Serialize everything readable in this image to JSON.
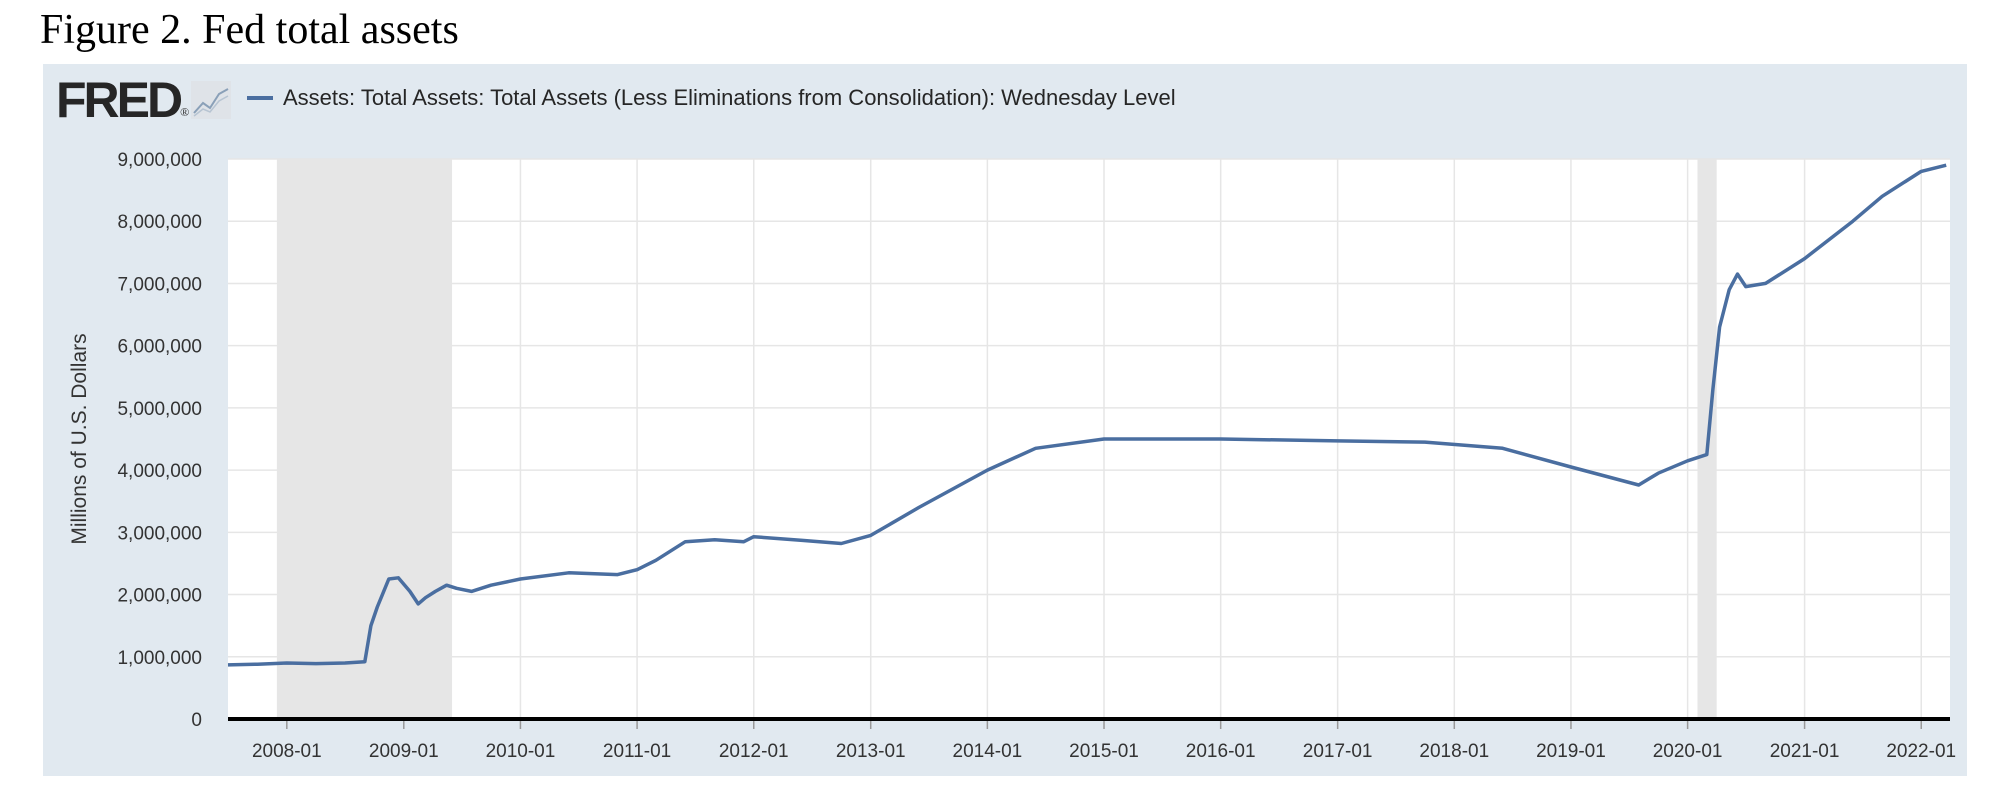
{
  "figure_title": "Figure 2. Fed total assets",
  "logo": {
    "text": "FRED",
    "mark": "®",
    "icon": "fred-chart-icon"
  },
  "colors": {
    "panel": "#e1e9f0",
    "series": "#4a6ea0",
    "recession": "#e6e6e6",
    "grid": "#e6e6e6",
    "axis": "#000000"
  },
  "chart_data": {
    "type": "line",
    "title": "",
    "xlabel": "",
    "ylabel": "Millions of U.S. Dollars",
    "ylim": [
      0,
      9000000
    ],
    "xlim": [
      "2007-07-01",
      "2022-04-01"
    ],
    "y_ticks": [
      0,
      1000000,
      2000000,
      3000000,
      4000000,
      5000000,
      6000000,
      7000000,
      8000000,
      9000000
    ],
    "y_tick_labels": [
      "0",
      "1,000,000",
      "2,000,000",
      "3,000,000",
      "4,000,000",
      "5,000,000",
      "6,000,000",
      "7,000,000",
      "8,000,000",
      "9,000,000"
    ],
    "x_ticks": [
      "2008-01-01",
      "2009-01-01",
      "2010-01-01",
      "2011-01-01",
      "2012-01-01",
      "2013-01-01",
      "2014-01-01",
      "2015-01-01",
      "2016-01-01",
      "2017-01-01",
      "2018-01-01",
      "2019-01-01",
      "2020-01-01",
      "2021-01-01",
      "2022-01-01"
    ],
    "x_tick_labels": [
      "2008-01",
      "2009-01",
      "2010-01",
      "2011-01",
      "2012-01",
      "2013-01",
      "2014-01",
      "2015-01",
      "2016-01",
      "2017-01",
      "2018-01",
      "2019-01",
      "2020-01",
      "2021-01",
      "2022-01"
    ],
    "grid": true,
    "legend": "top-left",
    "recessions": [
      [
        "2007-12-01",
        "2009-06-01"
      ],
      [
        "2020-02-01",
        "2020-04-01"
      ]
    ],
    "series": [
      {
        "name": "Assets: Total Assets: Total Assets (Less Eliminations from Consolidation): Wednesday Level",
        "points": [
          [
            "2007-07-01",
            870000
          ],
          [
            "2007-10-01",
            880000
          ],
          [
            "2008-01-01",
            900000
          ],
          [
            "2008-04-01",
            890000
          ],
          [
            "2008-07-01",
            900000
          ],
          [
            "2008-09-01",
            920000
          ],
          [
            "2008-09-20",
            1500000
          ],
          [
            "2008-10-10",
            1800000
          ],
          [
            "2008-11-15",
            2250000
          ],
          [
            "2008-12-15",
            2270000
          ],
          [
            "2009-01-20",
            2050000
          ],
          [
            "2009-02-15",
            1850000
          ],
          [
            "2009-03-10",
            1950000
          ],
          [
            "2009-04-10",
            2050000
          ],
          [
            "2009-05-15",
            2150000
          ],
          [
            "2009-06-15",
            2100000
          ],
          [
            "2009-08-01",
            2050000
          ],
          [
            "2009-10-01",
            2150000
          ],
          [
            "2010-01-01",
            2250000
          ],
          [
            "2010-06-01",
            2350000
          ],
          [
            "2010-11-01",
            2320000
          ],
          [
            "2011-01-01",
            2400000
          ],
          [
            "2011-03-01",
            2550000
          ],
          [
            "2011-06-01",
            2850000
          ],
          [
            "2011-09-01",
            2880000
          ],
          [
            "2011-12-01",
            2850000
          ],
          [
            "2012-01-01",
            2930000
          ],
          [
            "2012-06-01",
            2870000
          ],
          [
            "2012-10-01",
            2820000
          ],
          [
            "2013-01-01",
            2950000
          ],
          [
            "2013-06-01",
            3400000
          ],
          [
            "2014-01-01",
            4000000
          ],
          [
            "2014-06-01",
            4350000
          ],
          [
            "2015-01-01",
            4500000
          ],
          [
            "2016-01-01",
            4500000
          ],
          [
            "2017-01-01",
            4470000
          ],
          [
            "2017-10-01",
            4450000
          ],
          [
            "2018-06-01",
            4350000
          ],
          [
            "2019-01-01",
            4050000
          ],
          [
            "2019-08-01",
            3760000
          ],
          [
            "2019-10-01",
            3950000
          ],
          [
            "2020-01-01",
            4150000
          ],
          [
            "2020-03-01",
            4250000
          ],
          [
            "2020-03-20",
            5300000
          ],
          [
            "2020-04-10",
            6300000
          ],
          [
            "2020-05-10",
            6900000
          ],
          [
            "2020-06-05",
            7150000
          ],
          [
            "2020-07-01",
            6950000
          ],
          [
            "2020-09-01",
            7000000
          ],
          [
            "2021-01-01",
            7400000
          ],
          [
            "2021-06-01",
            8000000
          ],
          [
            "2021-09-01",
            8400000
          ],
          [
            "2022-01-01",
            8800000
          ],
          [
            "2022-03-20",
            8900000
          ]
        ]
      }
    ]
  }
}
